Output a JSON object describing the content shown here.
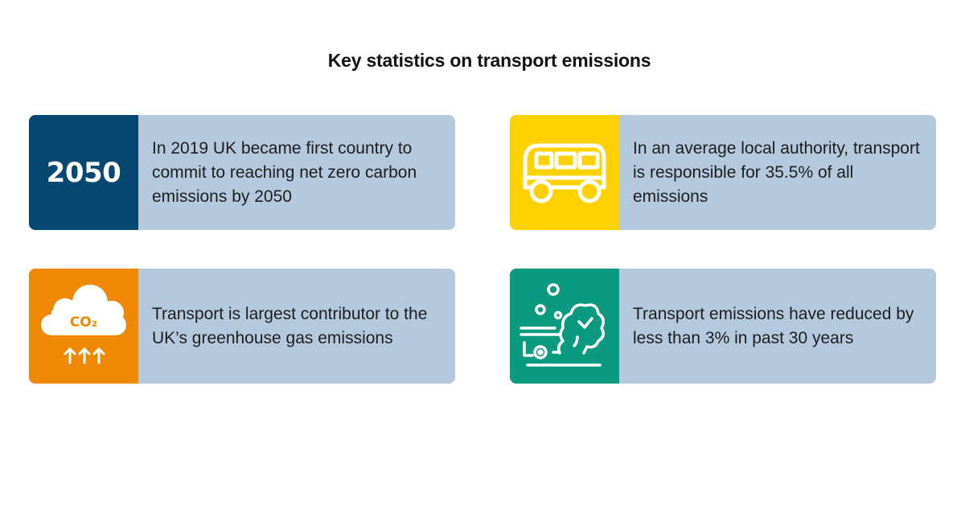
{
  "title": "Key statistics on transport emissions",
  "colors": {
    "card_background": "#b4c9dd",
    "navy": "#064872",
    "yellow": "#fed200",
    "orange": "#ef8903",
    "teal": "#0a9a80"
  },
  "cards": [
    {
      "panel": "year-badge",
      "badge_text": "2050",
      "text": "In 2019 UK became first country to commit to reaching net zero carbon emissions by 2050"
    },
    {
      "panel": "van-icon",
      "text": "In an average local authority, transport is responsible for 35.5% of all emissions"
    },
    {
      "panel": "co2-cloud-icon",
      "icon_label": "CO₂",
      "text": "Transport is largest contributor to the UK’s greenhouse gas emissions"
    },
    {
      "panel": "exhaust-smoke-icon",
      "text": "Transport emissions have reduced by less than 3% in past 30 years"
    }
  ]
}
